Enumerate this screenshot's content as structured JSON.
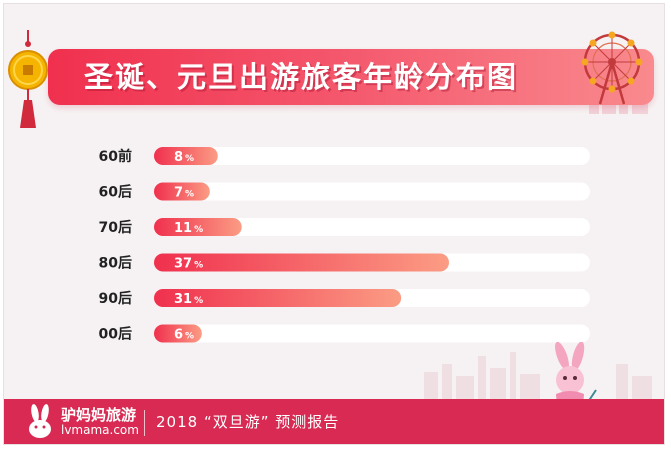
{
  "banner": {
    "title": "圣诞、元旦出游旅客年龄分布图"
  },
  "footer": {
    "brand_cn": "驴妈妈旅游",
    "brand_en": "lvmama.com",
    "report_title": "2018 “双旦游” 预测报告"
  },
  "colors": {
    "bar_start": "#f0304e",
    "bar_end": "#fb9c84",
    "track": "#ffffff",
    "banner": "#f0304e",
    "footer": "#d82a52"
  },
  "icons": {
    "coin": "lucky-coin-icon",
    "ferris_wheel": "ferris-wheel-icon",
    "logo": "bunny-logo-icon",
    "mascot": "bunny-mascot-icon"
  },
  "chart_data": {
    "type": "bar",
    "orientation": "horizontal",
    "title": "圣诞、元旦出游旅客年龄分布图",
    "categories": [
      "60前",
      "60后",
      "70后",
      "80后",
      "90后",
      "00后"
    ],
    "values": [
      8,
      7,
      11,
      37,
      31,
      6
    ],
    "value_suffix": "%",
    "xlim": [
      0,
      100
    ],
    "grid": false,
    "legend": "none"
  }
}
